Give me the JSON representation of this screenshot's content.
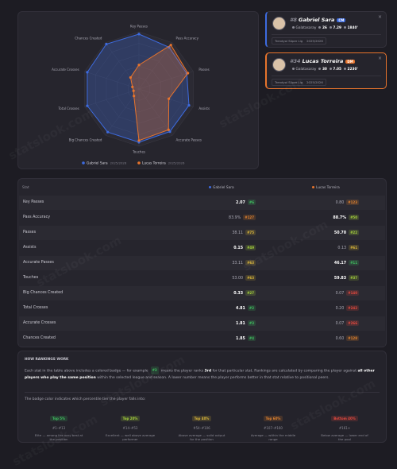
{
  "watermark": "statslook.com",
  "radar": {
    "type": "radar",
    "axes": [
      "Key Passes",
      "Pass Accuracy",
      "Passes",
      "Assists",
      "Accurate Passes",
      "Touches",
      "Big Chances Created",
      "Total Crosses",
      "Accurate Crosses",
      "Chances Created"
    ],
    "rlim": [
      0,
      100
    ],
    "series": [
      {
        "name": "Gabriel Sara",
        "season": "2025/2026",
        "color": "#3d6be0",
        "values": [
          96,
          90,
          88,
          92,
          92,
          93,
          93,
          95,
          95,
          97
        ]
      },
      {
        "name": "Lucas Torreira",
        "season": "2025/2026",
        "color": "#e8742c",
        "values": [
          42,
          95,
          90,
          55,
          88,
          90,
          15,
          10,
          12,
          25
        ]
      }
    ]
  },
  "players": [
    {
      "number": "#8",
      "name": "Gabriel Sara",
      "position": "CM",
      "color": "#3d6be0",
      "team": "Galatasaray",
      "age": "26",
      "rating": "7.29",
      "minutes": "1840'",
      "league": "Trendyol Süper Lig",
      "season": "2025/2026"
    },
    {
      "number": "#34",
      "name": "Lucas Torreira",
      "position": "DM",
      "color": "#e8742c",
      "team": "Galatasaray",
      "age": "30",
      "rating": "7.05",
      "minutes": "2230'",
      "league": "Trendyol Süper Lig",
      "season": "2025/2026"
    }
  ],
  "table": {
    "header": [
      "Stat",
      "Gabriel Sara",
      "Lucas Torreira"
    ],
    "rows": [
      {
        "stat": "Key Passes",
        "cells": [
          {
            "value": "2.07",
            "rank": "#6",
            "tier": 0,
            "best": true
          },
          {
            "value": "0.80",
            "rank": "#123",
            "tier": 3,
            "best": false
          }
        ]
      },
      {
        "stat": "Pass Accuracy",
        "cells": [
          {
            "value": "83.9%",
            "rank": "#127",
            "tier": 3,
            "best": false
          },
          {
            "value": "88.7%",
            "rank": "#50",
            "tier": 1,
            "best": true
          }
        ]
      },
      {
        "stat": "Passes",
        "cells": [
          {
            "value": "38.11",
            "rank": "#75",
            "tier": 2,
            "best": false
          },
          {
            "value": "50.70",
            "rank": "#22",
            "tier": 1,
            "best": true
          }
        ]
      },
      {
        "stat": "Assists",
        "cells": [
          {
            "value": "0.15",
            "rank": "#49",
            "tier": 1,
            "best": true
          },
          {
            "value": "0.13",
            "rank": "#61",
            "tier": 2,
            "best": false
          }
        ]
      },
      {
        "stat": "Accurate Passes",
        "cells": [
          {
            "value": "33.11",
            "rank": "#63",
            "tier": 2,
            "best": false
          },
          {
            "value": "46.17",
            "rank": "#11",
            "tier": 0,
            "best": true
          }
        ]
      },
      {
        "stat": "Touches",
        "cells": [
          {
            "value": "53.00",
            "rank": "#63",
            "tier": 2,
            "best": false
          },
          {
            "value": "59.83",
            "rank": "#37",
            "tier": 1,
            "best": true
          }
        ]
      },
      {
        "stat": "Big Chances Created",
        "cells": [
          {
            "value": "0.33",
            "rank": "#27",
            "tier": 1,
            "best": true
          },
          {
            "value": "0.07",
            "rank": "#140",
            "tier": 4,
            "best": false
          }
        ]
      },
      {
        "stat": "Total Crosses",
        "cells": [
          {
            "value": "4.81",
            "rank": "#2",
            "tier": 0,
            "best": true
          },
          {
            "value": "0.20",
            "rank": "#242",
            "tier": 4,
            "best": false
          }
        ]
      },
      {
        "stat": "Accurate Crosses",
        "cells": [
          {
            "value": "1.81",
            "rank": "#3",
            "tier": 0,
            "best": true
          },
          {
            "value": "0.07",
            "rank": "#266",
            "tier": 4,
            "best": false
          }
        ]
      },
      {
        "stat": "Chances Created",
        "cells": [
          {
            "value": "1.85",
            "rank": "#4",
            "tier": 0,
            "best": true
          },
          {
            "value": "0.60",
            "rank": "#128",
            "tier": 3,
            "best": false
          }
        ]
      }
    ]
  },
  "info": {
    "title": "HOW RANKINGS WORK",
    "paragraph": {
      "text_1": "Each stat in the table above includes a colored badge — for example",
      "badge": "#3",
      "text_2": "means the player ranks",
      "bold_1": "3rd",
      "text_3": "for that particular stat. Rankings are calculated by comparing the player against",
      "bold_2": "all other players who play the same position",
      "text_4": "within the selected league and season. A lower number means the player performs better in that stat relative to positional peers."
    },
    "tiers_intro": "The badge color indicates which percentile tier the player falls into:",
    "tiers": [
      {
        "label": "Top 5%",
        "range": "#1–#13",
        "description": "Elite — among the very best at the position",
        "color": "#3fbf5f"
      },
      {
        "label": "Top 20%",
        "range": "#14–#53",
        "description": "Excellent — well above average performer",
        "color": "#a6d23c"
      },
      {
        "label": "Top 40%",
        "range": "#54–#106",
        "description": "Above average — solid output for the position",
        "color": "#d9b63a"
      },
      {
        "label": "Top 60%",
        "range": "#107–#160",
        "description": "Average — within the middle range",
        "color": "#e0822e"
      },
      {
        "label": "Bottom 40%",
        "range": "#161+",
        "description": "Below average — lower end of the pool",
        "color": "#e2493e"
      }
    ]
  }
}
